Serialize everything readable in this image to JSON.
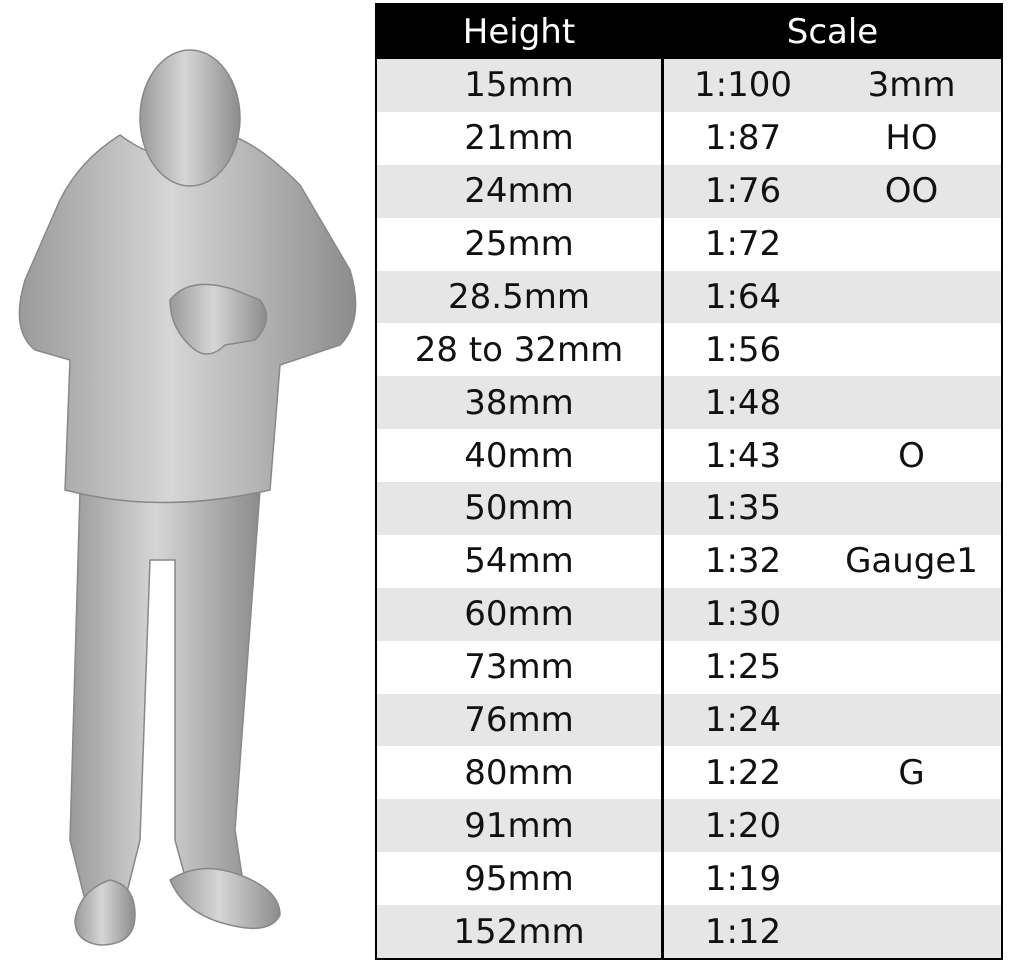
{
  "table": {
    "header": [
      "Height",
      "Scale"
    ],
    "rows": [
      [
        "15mm",
        "1:100",
        "3mm"
      ],
      [
        "21mm",
        "1:87",
        "HO"
      ],
      [
        "24mm",
        "1:76",
        "OO"
      ],
      [
        "25mm",
        "1:72"
      ],
      [
        "28.5mm",
        "1:64"
      ],
      [
        "28 to 32mm",
        "1:56"
      ],
      [
        "38mm",
        "1:48"
      ],
      [
        "40mm",
        "1:43",
        "O"
      ],
      [
        "50mm",
        "1:35"
      ],
      [
        "54mm",
        "1:32",
        "Gauge1"
      ],
      [
        "60mm",
        "1:30"
      ],
      [
        "73mm",
        "1:25"
      ],
      [
        "76mm",
        "1:24"
      ],
      [
        "80mm",
        "1:22",
        "G"
      ],
      [
        "91mm",
        "1:20"
      ],
      [
        "95mm",
        "1:19"
      ],
      [
        "152mm",
        "1:12"
      ]
    ]
  }
}
